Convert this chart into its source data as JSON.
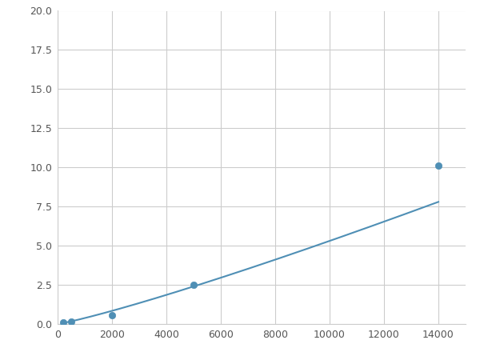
{
  "x": [
    200,
    500,
    2000,
    5000,
    14000
  ],
  "y": [
    0.09,
    0.13,
    0.55,
    2.5,
    10.1
  ],
  "line_color": "#4f8fb5",
  "marker_color": "#4f8fb5",
  "marker_size": 6,
  "xlim": [
    0,
    15000
  ],
  "ylim": [
    0,
    20
  ],
  "xticks": [
    0,
    2000,
    4000,
    6000,
    8000,
    10000,
    12000,
    14000
  ],
  "yticks": [
    0.0,
    2.5,
    5.0,
    7.5,
    10.0,
    12.5,
    15.0,
    17.5,
    20.0
  ],
  "grid_color": "#cccccc",
  "background_color": "#ffffff",
  "figure_background": "#ffffff"
}
